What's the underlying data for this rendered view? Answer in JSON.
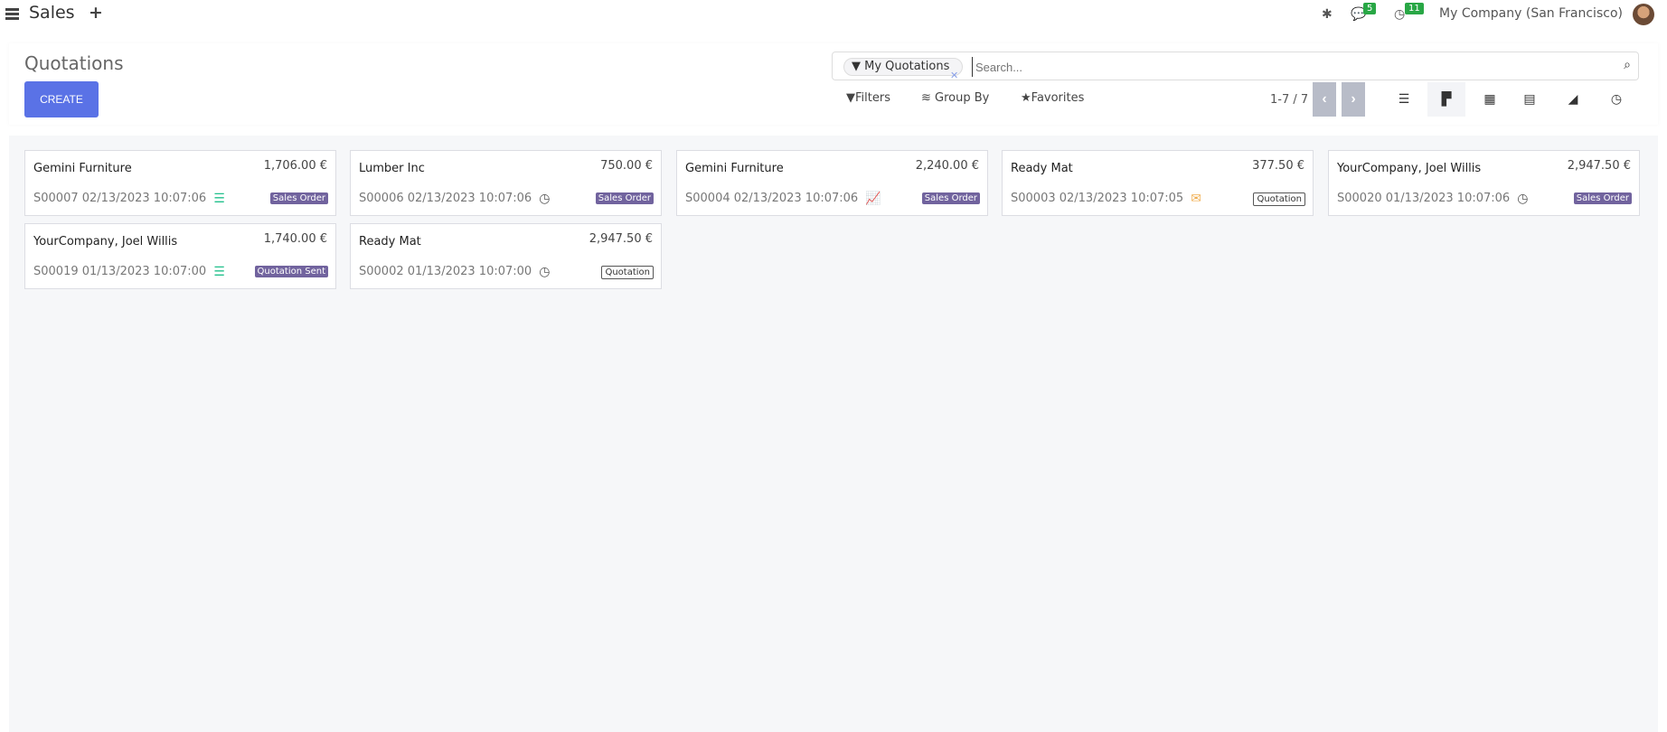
{
  "topbar": {
    "app_title": "Sales",
    "messages_count": "5",
    "activities_count": "11",
    "company": "My Company (San Francisco)"
  },
  "control_panel": {
    "title": "Quotations",
    "create_label": "CREATE",
    "search": {
      "facet": "My Quotations",
      "placeholder": "Search..."
    },
    "filters_label": "Filters",
    "group_by_label": "Group By",
    "favorites_label": "Favorites",
    "pager": "1-7 / 7",
    "views": [
      "list",
      "kanban",
      "calendar",
      "pivot",
      "graph",
      "activity"
    ],
    "active_view": "kanban"
  },
  "colors": {
    "accent": "#5a72e6",
    "badge": "#71639e",
    "activity_green": "#21c08b",
    "activity_orange": "#f0ad4e"
  },
  "cards": [
    {
      "name": "Gemini Furniture",
      "amount": "1,706.00 €",
      "ref": "S00007 02/13/2023 10:07:06",
      "icon": "tasks-icon",
      "status": "Sales Order",
      "style": "fill"
    },
    {
      "name": "Lumber Inc",
      "amount": "750.00 €",
      "ref": "S00006 02/13/2023 10:07:06",
      "icon": "clock-icon",
      "status": "Sales Order",
      "style": "fill"
    },
    {
      "name": "Gemini Furniture",
      "amount": "2,240.00 €",
      "ref": "S00004 02/13/2023 10:07:06",
      "icon": "chart-line-icon",
      "status": "Sales Order",
      "style": "fill"
    },
    {
      "name": "Ready Mat",
      "amount": "377.50 €",
      "ref": "S00003 02/13/2023 10:07:05",
      "icon": "envelope-icon",
      "status": "Quotation",
      "style": "out"
    },
    {
      "name": "YourCompany, Joel Willis",
      "amount": "2,947.50 €",
      "ref": "S00020 01/13/2023 10:07:06",
      "icon": "clock-icon",
      "status": "Sales Order",
      "style": "fill"
    },
    {
      "name": "YourCompany, Joel Willis",
      "amount": "1,740.00 €",
      "ref": "S00019 01/13/2023 10:07:00",
      "icon": "tasks-icon",
      "status": "Quotation Sent",
      "style": "fill"
    },
    {
      "name": "Ready Mat",
      "amount": "2,947.50 €",
      "ref": "S00002 01/13/2023 10:07:00",
      "icon": "clock-icon",
      "status": "Quotation",
      "style": "out"
    }
  ]
}
